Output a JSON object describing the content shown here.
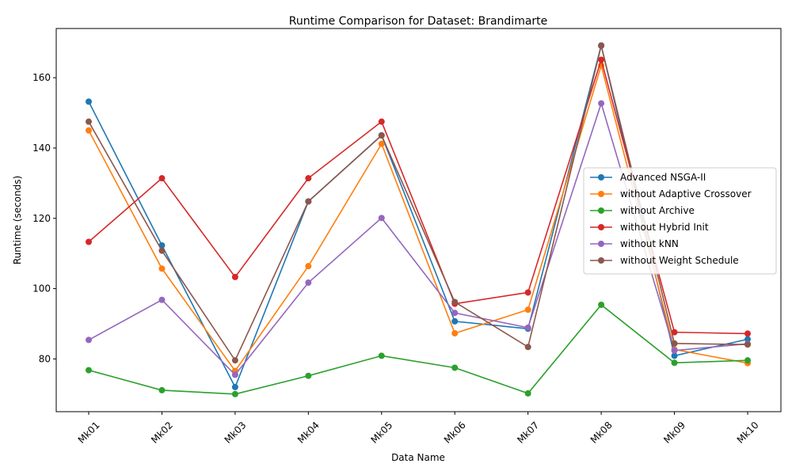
{
  "chart_data": {
    "type": "line",
    "title": "Runtime Comparison for Dataset: Brandimarte",
    "xlabel": "Data Name",
    "ylabel": "Runtime (seconds)",
    "categories": [
      "Mk01",
      "Mk02",
      "Mk03",
      "Mk04",
      "Mk05",
      "Mk06",
      "Mk07",
      "Mk08",
      "Mk09",
      "Mk10"
    ],
    "ylim": [
      65,
      174
    ],
    "yticks": [
      80,
      100,
      120,
      140,
      160
    ],
    "grid": false,
    "legend_position": "center-right",
    "series": [
      {
        "name": "Advanced NSGA-II",
        "color": "#1f77b4",
        "values": [
          153.2,
          112.3,
          72.0,
          124.8,
          143.6,
          90.7,
          88.6,
          169.2,
          80.9,
          85.6
        ]
      },
      {
        "name": "without Adaptive Crossover",
        "color": "#ff7f0e",
        "values": [
          145.0,
          105.7,
          76.6,
          106.4,
          141.2,
          87.3,
          94.0,
          163.5,
          82.7,
          78.8
        ]
      },
      {
        "name": "without Archive",
        "color": "#2ca02c",
        "values": [
          76.8,
          71.1,
          70.0,
          75.2,
          80.9,
          77.5,
          70.2,
          95.4,
          78.9,
          79.6
        ]
      },
      {
        "name": "without Hybrid Init",
        "color": "#d62728",
        "values": [
          113.3,
          131.4,
          103.3,
          131.4,
          147.5,
          95.7,
          98.9,
          165.1,
          87.6,
          87.2
        ]
      },
      {
        "name": "without kNN",
        "color": "#9467bd",
        "values": [
          85.4,
          96.8,
          75.5,
          101.7,
          120.1,
          93.1,
          88.9,
          152.7,
          82.4,
          84.3
        ]
      },
      {
        "name": "without Weight Schedule",
        "color": "#8c564b",
        "values": [
          147.5,
          110.8,
          79.6,
          124.8,
          143.6,
          96.2,
          83.4,
          169.1,
          84.4,
          84.1
        ]
      }
    ]
  }
}
